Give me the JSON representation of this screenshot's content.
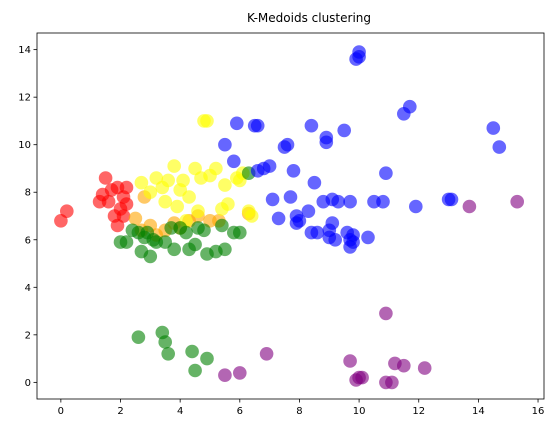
{
  "chart_data": {
    "type": "scatter",
    "title": "K-Medoids clustering",
    "xlim": [
      -0.8,
      16.2
    ],
    "ylim": [
      -0.7,
      14.7
    ],
    "x_ticks": [
      0,
      2,
      4,
      6,
      8,
      10,
      12,
      14,
      16
    ],
    "y_ticks": [
      0,
      2,
      4,
      6,
      8,
      10,
      12,
      14
    ],
    "point_alpha": 0.6,
    "series": [
      {
        "color": "#ff0000",
        "points": [
          [
            0.0,
            6.8
          ],
          [
            0.2,
            7.2
          ],
          [
            1.3,
            7.6
          ],
          [
            1.4,
            7.9
          ],
          [
            1.5,
            8.6
          ],
          [
            1.6,
            7.6
          ],
          [
            1.7,
            8.1
          ],
          [
            1.8,
            7.0
          ],
          [
            1.9,
            8.2
          ],
          [
            2.0,
            7.3
          ],
          [
            2.1,
            7.0
          ],
          [
            2.1,
            7.8
          ],
          [
            2.2,
            8.2
          ],
          [
            2.2,
            7.5
          ],
          [
            1.9,
            6.6
          ]
        ]
      },
      {
        "color": "#ffa500",
        "points": [
          [
            2.5,
            6.9
          ],
          [
            2.7,
            6.4
          ],
          [
            2.8,
            7.8
          ],
          [
            3.0,
            6.6
          ],
          [
            3.2,
            6.2
          ],
          [
            3.5,
            6.4
          ],
          [
            3.8,
            6.7
          ],
          [
            4.0,
            6.5
          ],
          [
            4.3,
            6.8
          ],
          [
            4.6,
            7.0
          ],
          [
            5.0,
            6.8
          ],
          [
            5.3,
            6.8
          ],
          [
            6.3,
            7.1
          ]
        ]
      },
      {
        "color": "#ffff00",
        "points": [
          [
            2.7,
            8.4
          ],
          [
            3.0,
            8.0
          ],
          [
            3.2,
            8.6
          ],
          [
            3.4,
            8.2
          ],
          [
            3.5,
            7.6
          ],
          [
            3.6,
            8.5
          ],
          [
            3.8,
            9.1
          ],
          [
            3.9,
            7.4
          ],
          [
            4.0,
            8.1
          ],
          [
            4.1,
            8.5
          ],
          [
            4.2,
            6.8
          ],
          [
            4.3,
            7.8
          ],
          [
            4.5,
            9.0
          ],
          [
            4.6,
            7.2
          ],
          [
            4.7,
            8.6
          ],
          [
            4.8,
            11.0
          ],
          [
            4.9,
            11.0
          ],
          [
            5.0,
            8.7
          ],
          [
            5.2,
            9.0
          ],
          [
            5.4,
            7.3
          ],
          [
            5.5,
            8.3
          ],
          [
            5.6,
            7.5
          ],
          [
            5.9,
            8.6
          ],
          [
            6.0,
            8.5
          ],
          [
            6.1,
            8.8
          ],
          [
            6.3,
            7.2
          ],
          [
            6.4,
            7.0
          ]
        ]
      },
      {
        "color": "#008000",
        "points": [
          [
            2.0,
            5.9
          ],
          [
            2.2,
            5.9
          ],
          [
            2.4,
            6.4
          ],
          [
            2.6,
            6.3
          ],
          [
            2.7,
            5.5
          ],
          [
            2.8,
            6.1
          ],
          [
            2.9,
            6.3
          ],
          [
            3.0,
            5.3
          ],
          [
            3.1,
            6.0
          ],
          [
            3.2,
            5.9
          ],
          [
            3.5,
            5.9
          ],
          [
            3.7,
            6.5
          ],
          [
            3.8,
            5.6
          ],
          [
            4.0,
            6.5
          ],
          [
            4.2,
            6.3
          ],
          [
            4.3,
            5.6
          ],
          [
            4.5,
            5.8
          ],
          [
            4.6,
            6.5
          ],
          [
            4.8,
            6.4
          ],
          [
            4.9,
            5.4
          ],
          [
            5.2,
            5.5
          ],
          [
            5.4,
            6.6
          ],
          [
            5.5,
            5.6
          ],
          [
            5.8,
            6.3
          ],
          [
            6.0,
            6.3
          ],
          [
            6.3,
            8.8
          ],
          [
            2.6,
            1.9
          ],
          [
            3.4,
            2.1
          ],
          [
            3.5,
            1.7
          ],
          [
            3.6,
            1.2
          ],
          [
            4.4,
            1.3
          ],
          [
            4.5,
            0.5
          ],
          [
            4.9,
            1.0
          ]
        ]
      },
      {
        "color": "#0000ff",
        "points": [
          [
            5.5,
            10.0
          ],
          [
            5.8,
            9.3
          ],
          [
            5.9,
            10.9
          ],
          [
            6.5,
            10.8
          ],
          [
            6.6,
            10.8
          ],
          [
            6.6,
            8.9
          ],
          [
            6.8,
            9.0
          ],
          [
            7.0,
            9.1
          ],
          [
            7.1,
            7.7
          ],
          [
            7.3,
            6.9
          ],
          [
            7.5,
            9.9
          ],
          [
            7.6,
            10.0
          ],
          [
            7.7,
            7.8
          ],
          [
            7.8,
            8.9
          ],
          [
            7.9,
            6.7
          ],
          [
            7.9,
            7.0
          ],
          [
            8.0,
            6.8
          ],
          [
            8.3,
            7.2
          ],
          [
            8.4,
            10.8
          ],
          [
            8.4,
            6.3
          ],
          [
            8.5,
            8.4
          ],
          [
            8.6,
            6.3
          ],
          [
            8.8,
            7.6
          ],
          [
            8.9,
            10.1
          ],
          [
            8.9,
            10.3
          ],
          [
            9.0,
            6.1
          ],
          [
            9.0,
            6.4
          ],
          [
            9.1,
            6.7
          ],
          [
            9.1,
            7.7
          ],
          [
            9.2,
            6.0
          ],
          [
            9.3,
            7.6
          ],
          [
            9.5,
            10.6
          ],
          [
            9.6,
            6.3
          ],
          [
            9.7,
            6.0
          ],
          [
            9.7,
            7.6
          ],
          [
            9.8,
            6.2
          ],
          [
            9.8,
            5.9
          ],
          [
            9.9,
            13.6
          ],
          [
            10.0,
            13.9
          ],
          [
            10.0,
            13.7
          ],
          [
            10.3,
            6.1
          ],
          [
            10.5,
            7.6
          ],
          [
            10.8,
            7.6
          ],
          [
            10.9,
            8.8
          ],
          [
            11.5,
            11.3
          ],
          [
            11.7,
            11.6
          ],
          [
            11.9,
            7.4
          ],
          [
            13.0,
            7.7
          ],
          [
            13.1,
            7.7
          ],
          [
            14.5,
            10.7
          ],
          [
            14.7,
            9.9
          ],
          [
            9.7,
            5.7
          ]
        ]
      },
      {
        "color": "#800080",
        "points": [
          [
            5.5,
            0.3
          ],
          [
            6.0,
            0.4
          ],
          [
            6.9,
            1.2
          ],
          [
            9.7,
            0.9
          ],
          [
            9.9,
            0.1
          ],
          [
            10.0,
            0.2
          ],
          [
            10.1,
            0.2
          ],
          [
            10.9,
            2.9
          ],
          [
            10.9,
            0.0
          ],
          [
            11.1,
            0.0
          ],
          [
            11.2,
            0.8
          ],
          [
            11.5,
            0.7
          ],
          [
            12.2,
            0.6
          ],
          [
            13.7,
            7.4
          ],
          [
            15.3,
            7.6
          ]
        ]
      }
    ]
  }
}
